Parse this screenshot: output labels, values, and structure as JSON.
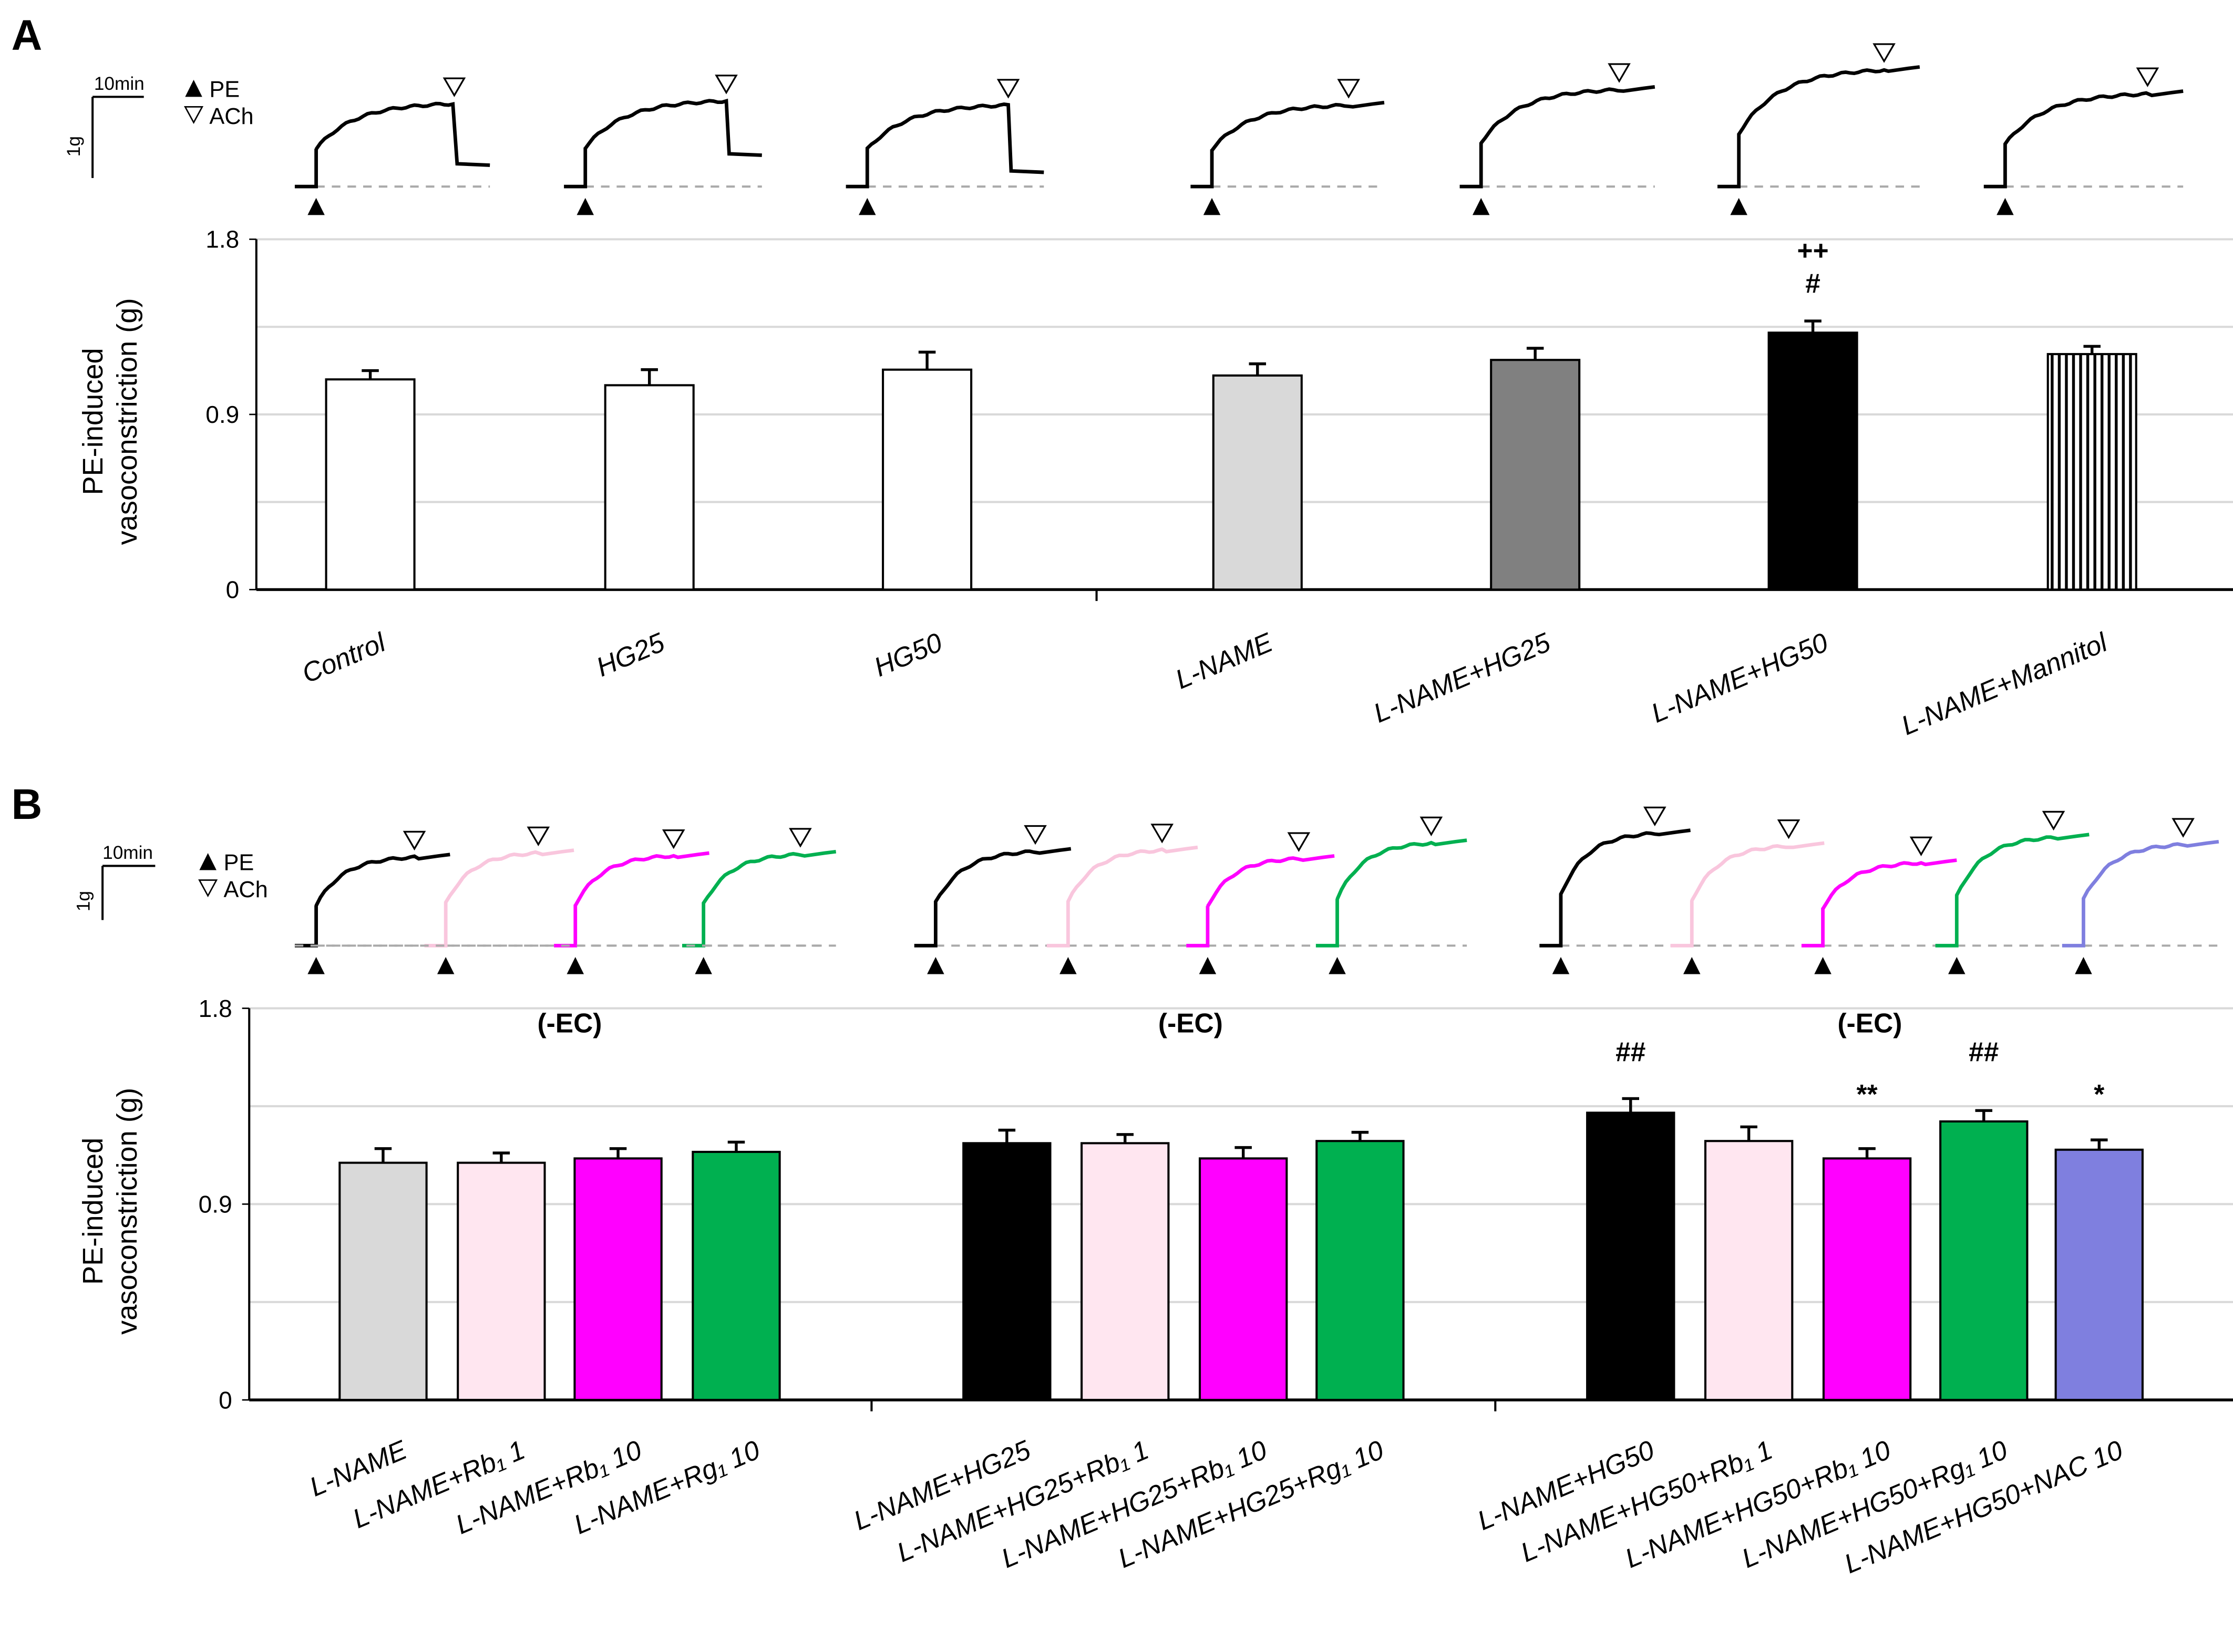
{
  "chart_data": [
    {
      "panel": "A",
      "type": "bar",
      "ylabel": "PE-induced vasoconstriction (g)",
      "ylim": [
        0,
        1.8
      ],
      "yticks": [
        "0",
        "0.9",
        "1.8"
      ],
      "grid": true,
      "categories": [
        "Control",
        "HG25",
        "HG50",
        "L-NAME",
        "L-NAME+HG25",
        "L-NAME+HG50",
        "L-NAME+Mannitol"
      ],
      "values": [
        1.08,
        1.05,
        1.13,
        1.1,
        1.18,
        1.32,
        1.21
      ],
      "errors": [
        0.045,
        0.08,
        0.09,
        0.06,
        0.06,
        0.06,
        0.04
      ],
      "colors": [
        "#ffffff",
        "#ffffff",
        "#ffffff",
        "#d9d9d9",
        "#808080",
        "#000000",
        "hatch"
      ],
      "annotations": [
        {
          "bar": 5,
          "lines": [
            "++",
            "#"
          ]
        }
      ],
      "legend": {
        "pe": "PE",
        "ach": "ACh",
        "time_scale": "10min",
        "force_scale": "1g"
      }
    },
    {
      "panel": "B",
      "type": "bar",
      "ylabel": "PE-induced vasoconstriction (g)",
      "ylim": [
        0,
        1.8
      ],
      "yticks": [
        "0",
        "0.9",
        "1.8"
      ],
      "grid": true,
      "group_labels": [
        "(-EC)",
        "(-EC)",
        "(-EC)"
      ],
      "categories": [
        "L-NAME",
        "L-NAME+Rb₁ 1",
        "L-NAME+Rb₁ 10",
        "L-NAME+Rg₁ 10",
        "L-NAME+HG25",
        "L-NAME+HG25+Rb₁ 1",
        "L-NAME+HG25+Rb₁ 10",
        "L-NAME+HG25+Rg₁ 10",
        "L-NAME+HG50",
        "L-NAME+HG50+Rb₁ 1",
        "L-NAME+HG50+Rb₁ 10",
        "L-NAME+HG50+Rg₁ 10",
        "L-NAME+HG50+NAC 10"
      ],
      "values": [
        1.09,
        1.09,
        1.11,
        1.14,
        1.18,
        1.18,
        1.11,
        1.19,
        1.32,
        1.19,
        1.11,
        1.28,
        1.15
      ],
      "errors": [
        0.065,
        0.045,
        0.045,
        0.045,
        0.06,
        0.04,
        0.05,
        0.04,
        0.065,
        0.065,
        0.045,
        0.05,
        0.045
      ],
      "colors": [
        "#d9d9d9",
        "#ffe6f0",
        "#ff00ff",
        "#00b050",
        "#000000",
        "#ffe6f0",
        "#ff00ff",
        "#00b050",
        "#000000",
        "#ffe6f0",
        "#ff00ff",
        "#00b050",
        "#7f7fdf"
      ],
      "annotations": [
        {
          "bar": 8,
          "lines": [
            "##"
          ]
        },
        {
          "bar": 10,
          "lines": [
            "**"
          ]
        },
        {
          "bar": 11,
          "lines": [
            "##"
          ]
        },
        {
          "bar": 12,
          "lines": [
            "*"
          ]
        }
      ],
      "legend": {
        "pe": "PE",
        "ach": "ACh",
        "time_scale": "10min",
        "force_scale": "1g"
      }
    }
  ]
}
